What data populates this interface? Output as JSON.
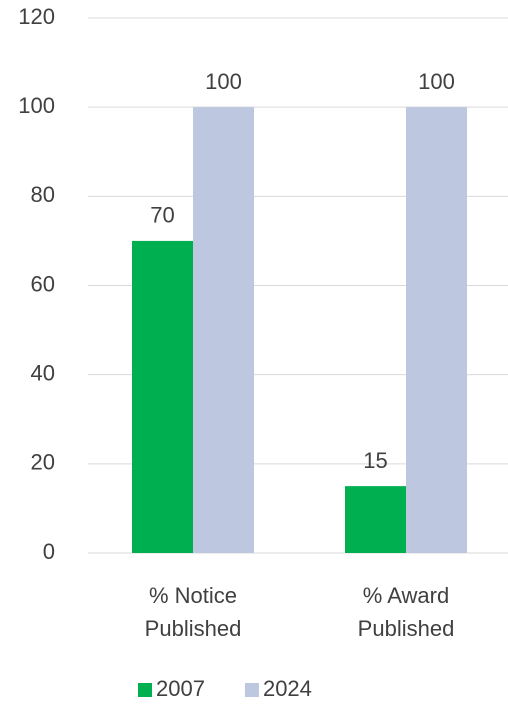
{
  "chart_data": {
    "type": "bar",
    "categories": [
      "% Notice\nPublished",
      "% Award\nPublished"
    ],
    "series": [
      {
        "name": "2007",
        "color": "#00b050",
        "values": [
          70,
          15
        ]
      },
      {
        "name": "2024",
        "color": "#bdc7e0",
        "values": [
          100,
          100
        ]
      }
    ],
    "ylim": [
      0,
      120
    ],
    "yticks": [
      0,
      20,
      40,
      60,
      80,
      100,
      120
    ],
    "grid": true,
    "legend": "bottom"
  }
}
